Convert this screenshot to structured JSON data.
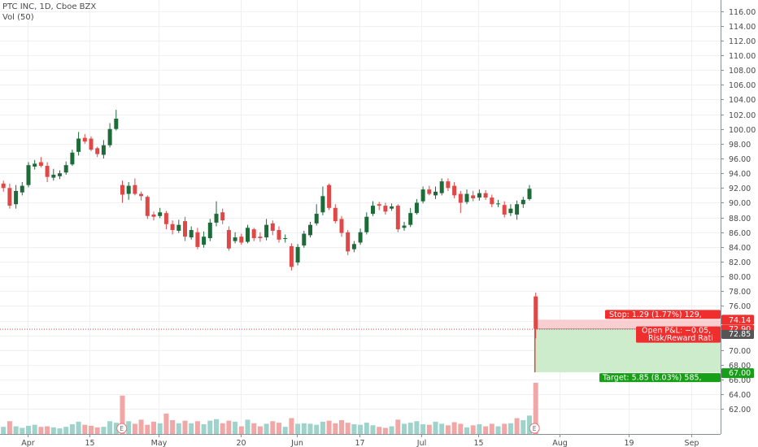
{
  "header": {
    "symbol_title": "PTC INC, 1D, Cboe BZX",
    "volume_label": "Vol (50)"
  },
  "colors": {
    "up": "#1e6b3a",
    "down": "#e04848",
    "vol_up": "#9dd3ca",
    "vol_down": "#f2a7a7",
    "grid": "#eef0f4",
    "stop_zone": "#f8c9cc",
    "target_zone": "#c9ebc9",
    "badge_red": "#ef2e2e",
    "badge_green": "#17a017",
    "badge_dark": "#555555"
  },
  "chart_data": {
    "type": "candlestick",
    "title": "PTC INC, 1D, Cboe BZX",
    "ylim": [
      60.4,
      117.0
    ],
    "y_ticks": [
      "62.00",
      "64.00",
      "66.00",
      "68.00",
      "70.00",
      "72.00",
      "74.00",
      "76.00",
      "78.00",
      "80.00",
      "82.00",
      "84.00",
      "86.00",
      "88.00",
      "90.00",
      "92.00",
      "94.00",
      "96.00",
      "98.00",
      "100.00",
      "102.00",
      "104.00",
      "106.00",
      "108.00",
      "110.00",
      "112.00",
      "114.00",
      "116.00"
    ],
    "x_ticks": [
      {
        "label": "Apr",
        "bar": 4.9
      },
      {
        "label": "15",
        "bar": 14.8
      },
      {
        "label": "May",
        "bar": 25.8
      },
      {
        "label": "20",
        "bar": 38.9
      },
      {
        "label": "Jun",
        "bar": 47.8
      },
      {
        "label": "17",
        "bar": 57.8
      },
      {
        "label": "Jul",
        "bar": 67.7
      },
      {
        "label": "15",
        "bar": 76.8
      },
      {
        "label": "Aug",
        "bar": 89.8
      },
      {
        "label": "19",
        "bar": 100.8
      },
      {
        "label": "Sep",
        "bar": 110.8
      }
    ],
    "candles": [
      [
        94.6,
        92.0,
        95.0,
        91.6
      ],
      [
        92.6,
        92.0,
        93.0,
        91.5
      ],
      [
        92.0,
        89.6,
        92.6,
        89.2
      ],
      [
        89.8,
        91.6,
        92.4,
        89.2
      ],
      [
        91.4,
        92.3,
        92.8,
        91.0
      ],
      [
        92.4,
        95.1,
        95.5,
        92.1
      ],
      [
        94.9,
        95.3,
        95.8,
        94.5
      ],
      [
        95.5,
        95.0,
        96.2,
        94.8
      ],
      [
        95.0,
        93.5,
        95.5,
        92.8
      ],
      [
        93.4,
        93.8,
        94.6,
        93.0
      ],
      [
        93.6,
        94.0,
        94.4,
        93.2
      ],
      [
        94.1,
        95.1,
        95.6,
        93.8
      ],
      [
        95.2,
        96.8,
        97.2,
        95.0
      ],
      [
        96.9,
        98.7,
        99.6,
        96.4
      ],
      [
        98.8,
        98.3,
        99.3,
        98.0
      ],
      [
        98.7,
        97.2,
        99.0,
        97.0
      ],
      [
        97.4,
        96.6,
        97.6,
        96.2
      ],
      [
        96.5,
        97.8,
        98.5,
        96.0
      ],
      [
        97.8,
        100.0,
        100.8,
        97.5
      ],
      [
        100.0,
        101.4,
        102.6,
        99.8
      ],
      [
        92.4,
        91.1,
        93.0,
        90.0
      ],
      [
        91.2,
        92.3,
        92.8,
        90.4
      ],
      [
        92.4,
        91.2,
        93.3,
        91.0
      ],
      [
        91.2,
        90.9,
        91.5,
        90.3
      ],
      [
        90.8,
        88.2,
        91.0,
        87.8
      ],
      [
        88.4,
        88.1,
        88.8,
        87.6
      ],
      [
        88.2,
        88.7,
        89.3,
        87.9
      ],
      [
        88.6,
        87.1,
        88.9,
        86.4
      ],
      [
        87.1,
        86.3,
        87.6,
        85.7
      ],
      [
        86.2,
        87.0,
        87.7,
        85.9
      ],
      [
        87.5,
        85.4,
        88.1,
        84.8
      ],
      [
        85.3,
        86.3,
        86.8,
        85.0
      ],
      [
        86.0,
        84.0,
        86.6,
        83.7
      ],
      [
        84.3,
        85.4,
        86.1,
        83.9
      ],
      [
        85.2,
        87.3,
        87.8,
        84.8
      ],
      [
        87.3,
        88.5,
        90.2,
        86.8
      ],
      [
        88.7,
        87.6,
        89.2,
        87.1
      ],
      [
        86.3,
        83.8,
        86.8,
        83.5
      ],
      [
        84.8,
        85.3,
        86.0,
        84.5
      ],
      [
        85.4,
        84.6,
        85.8,
        84.3
      ],
      [
        84.7,
        86.6,
        87.0,
        84.5
      ],
      [
        86.4,
        85.2,
        86.6,
        84.8
      ],
      [
        85.4,
        85.2,
        86.0,
        84.7
      ],
      [
        85.3,
        87.0,
        87.8,
        84.9
      ],
      [
        87.2,
        86.2,
        87.6,
        85.6
      ],
      [
        86.3,
        85.0,
        86.8,
        84.6
      ],
      [
        85.2,
        85.2,
        85.7,
        84.6
      ],
      [
        84.1,
        81.3,
        84.5,
        80.8
      ],
      [
        81.9,
        84.0,
        84.4,
        81.5
      ],
      [
        84.2,
        85.8,
        86.2,
        83.9
      ],
      [
        85.6,
        87.0,
        87.4,
        85.3
      ],
      [
        87.2,
        88.5,
        89.8,
        86.9
      ],
      [
        88.7,
        90.9,
        92.2,
        88.3
      ],
      [
        92.4,
        89.3,
        92.6,
        89.0
      ],
      [
        89.3,
        87.5,
        89.8,
        87.2
      ],
      [
        87.8,
        85.9,
        88.2,
        85.4
      ],
      [
        86.0,
        83.4,
        86.3,
        82.9
      ],
      [
        83.7,
        84.4,
        84.8,
        83.3
      ],
      [
        84.6,
        86.0,
        86.5,
        84.3
      ],
      [
        86.0,
        88.1,
        88.7,
        85.7
      ],
      [
        88.5,
        89.6,
        90.2,
        88.2
      ],
      [
        89.8,
        89.6,
        90.1,
        89.0
      ],
      [
        89.6,
        88.8,
        90.0,
        88.4
      ],
      [
        89.2,
        89.5,
        89.9,
        88.9
      ],
      [
        89.6,
        86.4,
        89.8,
        86.0
      ],
      [
        86.6,
        86.9,
        87.4,
        86.2
      ],
      [
        87.0,
        88.6,
        89.3,
        86.7
      ],
      [
        88.6,
        90.0,
        90.5,
        88.4
      ],
      [
        90.2,
        91.8,
        92.2,
        89.9
      ],
      [
        91.8,
        91.2,
        92.3,
        91.0
      ],
      [
        91.0,
        91.5,
        92.2,
        90.5
      ],
      [
        91.3,
        92.9,
        93.3,
        91.0
      ],
      [
        92.9,
        92.0,
        93.3,
        91.6
      ],
      [
        92.3,
        91.0,
        92.8,
        90.6
      ],
      [
        91.2,
        90.0,
        91.6,
        88.6
      ],
      [
        90.1,
        91.2,
        91.8,
        89.8
      ],
      [
        91.0,
        90.6,
        91.6,
        90.2
      ],
      [
        90.7,
        91.3,
        91.8,
        90.3
      ],
      [
        91.3,
        90.7,
        91.7,
        90.4
      ],
      [
        90.7,
        89.8,
        91.1,
        89.4
      ],
      [
        89.9,
        89.9,
        90.4,
        89.4
      ],
      [
        89.7,
        88.4,
        90.2,
        88.0
      ],
      [
        88.6,
        89.2,
        89.8,
        88.2
      ],
      [
        88.4,
        89.8,
        90.3,
        87.7
      ],
      [
        89.8,
        90.4,
        90.8,
        89.3
      ],
      [
        90.5,
        91.9,
        92.4,
        90.3
      ],
      [
        77.3,
        72.9,
        77.8,
        71.6
      ]
    ],
    "volumes": [
      [
        0,
        0.22
      ],
      [
        1,
        0.14
      ],
      [
        0,
        0.25
      ],
      [
        1,
        0.15
      ],
      [
        1,
        0.12
      ],
      [
        1,
        0.16
      ],
      [
        1,
        0.18
      ],
      [
        0,
        0.14
      ],
      [
        0,
        0.15
      ],
      [
        1,
        0.13
      ],
      [
        1,
        0.11
      ],
      [
        1,
        0.14
      ],
      [
        1,
        0.19
      ],
      [
        1,
        0.24
      ],
      [
        0,
        0.18
      ],
      [
        0,
        0.16
      ],
      [
        0,
        0.13
      ],
      [
        1,
        0.14
      ],
      [
        1,
        0.25
      ],
      [
        1,
        0.22
      ],
      [
        0,
        0.75
      ],
      [
        1,
        0.25
      ],
      [
        0,
        0.2
      ],
      [
        0,
        0.28
      ],
      [
        0,
        0.18
      ],
      [
        0,
        0.24
      ],
      [
        1,
        0.21
      ],
      [
        0,
        0.4
      ],
      [
        0,
        0.27
      ],
      [
        1,
        0.21
      ],
      [
        0,
        0.26
      ],
      [
        1,
        0.21
      ],
      [
        0,
        0.25
      ],
      [
        1,
        0.19
      ],
      [
        1,
        0.26
      ],
      [
        1,
        0.29
      ],
      [
        0,
        0.21
      ],
      [
        0,
        0.26
      ],
      [
        1,
        0.24
      ],
      [
        0,
        0.15
      ],
      [
        1,
        0.28
      ],
      [
        0,
        0.21
      ],
      [
        0,
        0.15
      ],
      [
        1,
        0.2
      ],
      [
        0,
        0.25
      ],
      [
        0,
        0.22
      ],
      [
        1,
        0.14
      ],
      [
        0,
        0.31
      ],
      [
        1,
        0.2
      ],
      [
        1,
        0.21
      ],
      [
        1,
        0.2
      ],
      [
        1,
        0.18
      ],
      [
        1,
        0.24
      ],
      [
        0,
        0.26
      ],
      [
        0,
        0.21
      ],
      [
        0,
        0.27
      ],
      [
        0,
        0.22
      ],
      [
        1,
        0.19
      ],
      [
        1,
        0.18
      ],
      [
        1,
        0.22
      ],
      [
        1,
        0.17
      ],
      [
        0,
        0.14
      ],
      [
        0,
        0.12
      ],
      [
        1,
        0.15
      ],
      [
        0,
        0.28
      ],
      [
        1,
        0.2
      ],
      [
        1,
        0.22
      ],
      [
        1,
        0.25
      ],
      [
        1,
        0.19
      ],
      [
        0,
        0.18
      ],
      [
        1,
        0.24
      ],
      [
        1,
        0.2
      ],
      [
        0,
        0.17
      ],
      [
        0,
        0.23
      ],
      [
        0,
        0.2
      ],
      [
        1,
        0.13
      ],
      [
        0,
        0.17
      ],
      [
        1,
        0.19
      ],
      [
        0,
        0.15
      ],
      [
        0,
        0.2
      ],
      [
        1,
        0.15
      ],
      [
        0,
        0.2
      ],
      [
        1,
        0.21
      ],
      [
        0,
        0.31
      ],
      [
        1,
        0.27
      ],
      [
        1,
        0.36
      ],
      [
        0,
        1.0
      ]
    ],
    "earnings_markers": [
      {
        "label": "E",
        "bar": 19.9
      },
      {
        "label": "E",
        "bar": 85.8
      }
    ],
    "position": {
      "type": "short",
      "entry": 72.9,
      "stop": 74.14,
      "target": 67.0,
      "current": 72.85,
      "start_bar": 86,
      "end_bar": 115
    }
  },
  "overlay": {
    "stop_text": "Stop: 1.29 (1.77%) 129,",
    "open_pnl_text": "Open P&L: −0.05,",
    "risk_reward_text": "Risk/Reward Rati",
    "target_text": "Target: 5.85 (8.03%) 585,",
    "price_badges": {
      "stop": "74.14",
      "entry": "72.90",
      "current": "72.85",
      "target": "67.00"
    }
  }
}
